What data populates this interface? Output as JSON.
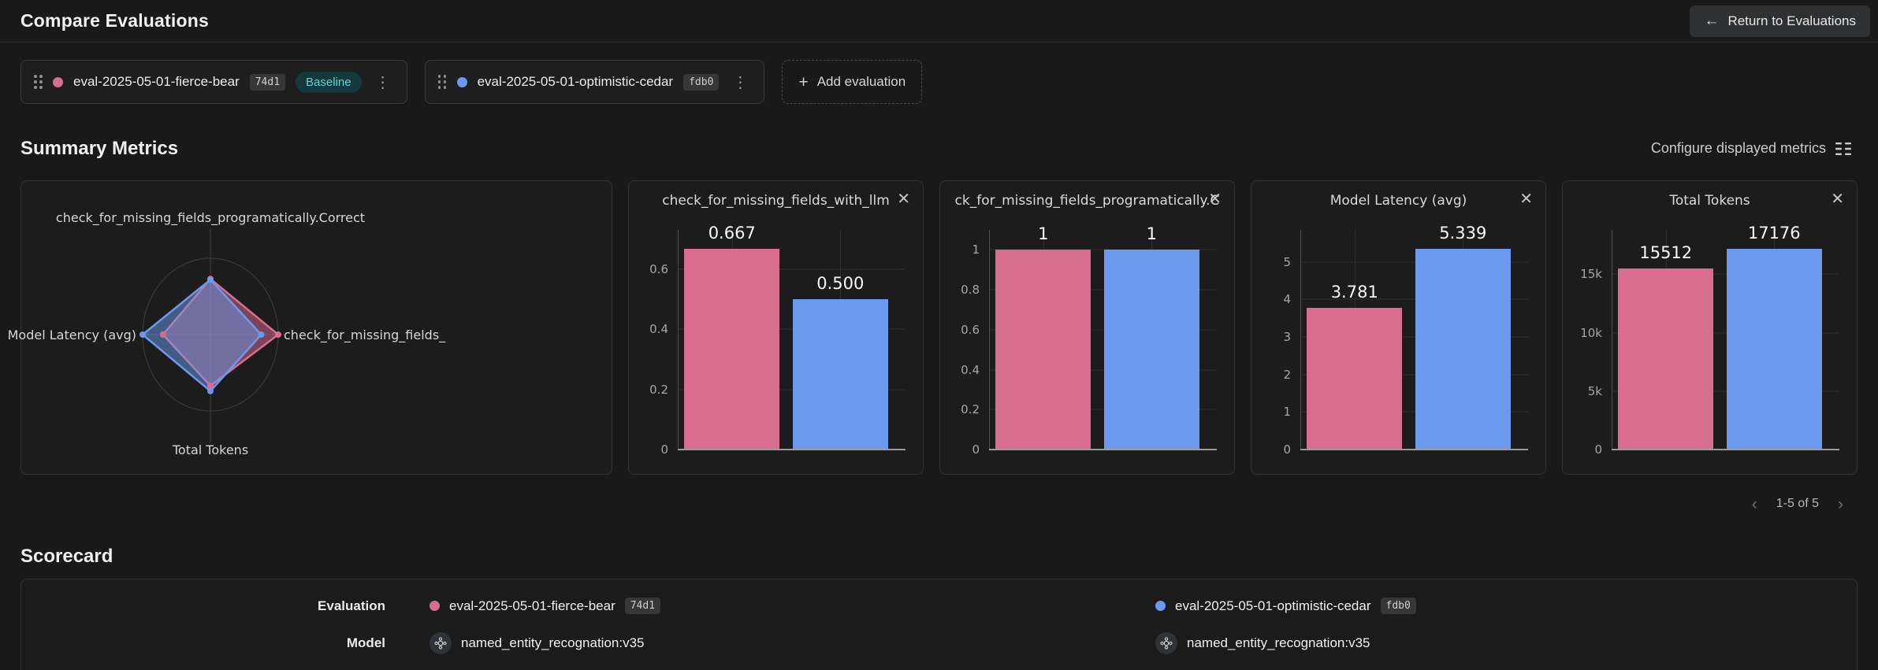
{
  "icons": {
    "close": "✕",
    "plus": "+",
    "arrow_left": "←",
    "kebab": "⋮",
    "chevron_left": "‹",
    "chevron_right": "›"
  },
  "colors": {
    "pink": "#d96d90",
    "blue": "#6b99ee",
    "baseline_badge_bg": "#14393d",
    "baseline_badge_text": "#5fd3d6"
  },
  "header": {
    "title": "Compare Evaluations",
    "return_button": "Return to Evaluations"
  },
  "evaluation_bar": {
    "evaluations": [
      {
        "name": "eval-2025-05-01-fierce-bear",
        "id": "74d1",
        "baseline_label": "Baseline",
        "color": "#d96d90"
      },
      {
        "name": "eval-2025-05-01-optimistic-cedar",
        "id": "fdb0",
        "color": "#6b99ee"
      }
    ],
    "add_button": "Add evaluation"
  },
  "summary_metrics": {
    "title": "Summary Metrics",
    "configure_button": "Configure displayed metrics",
    "pagination": {
      "range": "1-5 of 5"
    }
  },
  "chart_data": [
    {
      "type": "radar",
      "axes": [
        "check_for_missing_fields_programatically.Correct",
        "check_for_missing_fields_",
        "Total Tokens",
        "Model Latency (avg)"
      ],
      "series": [
        {
          "name": "eval-2025-05-01-fierce-bear",
          "color": "#d96d90",
          "metric_values": {
            "check_for_missing_fields_with_llm": 0.667,
            "check_for_missing_fields_programatically.Correct": 1,
            "Model Latency (avg)": 3.781,
            "Total Tokens": 15512
          },
          "values_fraction": [
            0.73,
            1.0,
            0.67,
            0.7
          ]
        },
        {
          "name": "eval-2025-05-01-optimistic-cedar",
          "color": "#6b99ee",
          "metric_values": {
            "check_for_missing_fields_with_llm": 0.5,
            "check_for_missing_fields_programatically.Correct": 1,
            "Model Latency (avg)": 5.339,
            "Total Tokens": 17176
          },
          "values_fraction": [
            0.72,
            0.75,
            0.74,
            1.0
          ]
        }
      ]
    },
    {
      "type": "bar",
      "title": "check_for_missing_fields_with_llm",
      "categories": [
        "eval-2025-05-01-fierce-bear",
        "eval-2025-05-01-optimistic-cedar"
      ],
      "values": [
        0.667,
        0.5
      ],
      "value_labels": [
        "0.667",
        "0.500"
      ],
      "yticks": [
        {
          "v": 0,
          "label": "0"
        },
        {
          "v": 0.2,
          "label": "0.2"
        },
        {
          "v": 0.4,
          "label": "0.4"
        },
        {
          "v": 0.6,
          "label": "0.6"
        }
      ],
      "ymax": 0.73
    },
    {
      "type": "bar",
      "title": "ck_for_missing_fields_programatically.C",
      "categories": [
        "eval-2025-05-01-fierce-bear",
        "eval-2025-05-01-optimistic-cedar"
      ],
      "values": [
        1,
        1
      ],
      "value_labels": [
        "1",
        "1"
      ],
      "yticks": [
        {
          "v": 0,
          "label": "0"
        },
        {
          "v": 0.2,
          "label": "0.2"
        },
        {
          "v": 0.4,
          "label": "0.4"
        },
        {
          "v": 0.6,
          "label": "0.6"
        },
        {
          "v": 0.8,
          "label": "0.8"
        },
        {
          "v": 1,
          "label": "1"
        }
      ],
      "ymax": 1.1
    },
    {
      "type": "bar",
      "title": "Model Latency (avg)",
      "categories": [
        "eval-2025-05-01-fierce-bear",
        "eval-2025-05-01-optimistic-cedar"
      ],
      "values": [
        3.781,
        5.339
      ],
      "value_labels": [
        "3.781",
        "5.339"
      ],
      "yticks": [
        {
          "v": 0,
          "label": "0"
        },
        {
          "v": 1,
          "label": "1"
        },
        {
          "v": 2,
          "label": "2"
        },
        {
          "v": 3,
          "label": "3"
        },
        {
          "v": 4,
          "label": "4"
        },
        {
          "v": 5,
          "label": "5"
        }
      ],
      "ymax": 5.85
    },
    {
      "type": "bar",
      "title": "Total Tokens",
      "categories": [
        "eval-2025-05-01-fierce-bear",
        "eval-2025-05-01-optimistic-cedar"
      ],
      "values": [
        15512,
        17176
      ],
      "value_labels": [
        "15512",
        "17176"
      ],
      "yticks": [
        {
          "v": 0,
          "label": "0"
        },
        {
          "v": 5000,
          "label": "5k"
        },
        {
          "v": 10000,
          "label": "10k"
        },
        {
          "v": 15000,
          "label": "15k"
        }
      ],
      "ymax": 18800
    }
  ],
  "scorecard": {
    "title": "Scorecard",
    "rows": [
      {
        "label": "Evaluation",
        "values": [
          {
            "name": "eval-2025-05-01-fierce-bear",
            "id": "74d1",
            "color": "#d96d90"
          },
          {
            "name": "eval-2025-05-01-optimistic-cedar",
            "id": "fdb0",
            "color": "#6b99ee"
          }
        ]
      },
      {
        "label": "Model",
        "values": [
          {
            "name": "named_entity_recognation:v35"
          },
          {
            "name": "named_entity_recognation:v35"
          }
        ]
      }
    ]
  }
}
